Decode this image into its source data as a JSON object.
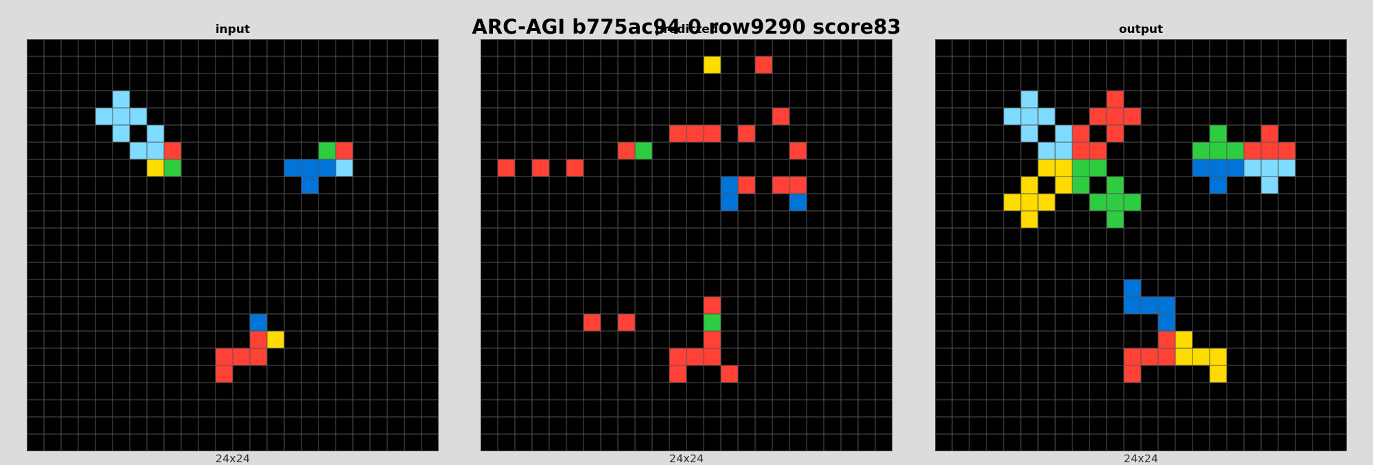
{
  "title": "ARC-AGI b775ac94 0 row9290 score83",
  "palette": {
    "0": "#000000",
    "1": "#0074D9",
    "2": "#FF4136",
    "3": "#2ECC40",
    "4": "#FFDC00",
    "8": "#7FDBFF"
  },
  "grid_line_color": "#555555",
  "panels": [
    {
      "key": "input",
      "title": "input",
      "size_label": "24x24",
      "rows": 24,
      "cols": 24,
      "cells": [
        [
          3,
          5,
          8
        ],
        [
          4,
          4,
          8
        ],
        [
          4,
          5,
          8
        ],
        [
          4,
          6,
          8
        ],
        [
          5,
          5,
          8
        ],
        [
          5,
          7,
          8
        ],
        [
          6,
          6,
          8
        ],
        [
          6,
          7,
          8
        ],
        [
          6,
          8,
          2
        ],
        [
          6,
          17,
          3
        ],
        [
          6,
          18,
          2
        ],
        [
          7,
          7,
          4
        ],
        [
          7,
          8,
          3
        ],
        [
          7,
          15,
          1
        ],
        [
          7,
          16,
          1
        ],
        [
          7,
          17,
          1
        ],
        [
          7,
          18,
          8
        ],
        [
          8,
          16,
          1
        ],
        [
          16,
          13,
          1
        ],
        [
          17,
          13,
          2
        ],
        [
          17,
          14,
          4
        ],
        [
          18,
          11,
          2
        ],
        [
          18,
          12,
          2
        ],
        [
          18,
          13,
          2
        ],
        [
          19,
          11,
          2
        ]
      ]
    },
    {
      "key": "predicted",
      "title": "predicted",
      "size_label": "24x24",
      "rows": 24,
      "cols": 24,
      "cells": [
        [
          1,
          13,
          4
        ],
        [
          1,
          16,
          2
        ],
        [
          4,
          17,
          2
        ],
        [
          5,
          11,
          2
        ],
        [
          5,
          12,
          2
        ],
        [
          5,
          13,
          2
        ],
        [
          5,
          15,
          2
        ],
        [
          6,
          8,
          2
        ],
        [
          6,
          9,
          3
        ],
        [
          6,
          18,
          2
        ],
        [
          7,
          1,
          2
        ],
        [
          7,
          3,
          2
        ],
        [
          7,
          5,
          2
        ],
        [
          8,
          14,
          1
        ],
        [
          8,
          15,
          2
        ],
        [
          8,
          17,
          2
        ],
        [
          8,
          18,
          2
        ],
        [
          9,
          14,
          1
        ],
        [
          9,
          18,
          1
        ],
        [
          15,
          13,
          2
        ],
        [
          16,
          6,
          2
        ],
        [
          16,
          8,
          2
        ],
        [
          16,
          13,
          3
        ],
        [
          17,
          13,
          2
        ],
        [
          18,
          11,
          2
        ],
        [
          18,
          12,
          2
        ],
        [
          18,
          13,
          2
        ],
        [
          19,
          11,
          2
        ],
        [
          19,
          14,
          2
        ]
      ]
    },
    {
      "key": "output",
      "title": "output",
      "size_label": "24x24",
      "rows": 24,
      "cols": 24,
      "cells": [
        [
          3,
          5,
          8
        ],
        [
          3,
          10,
          2
        ],
        [
          4,
          4,
          8
        ],
        [
          4,
          5,
          8
        ],
        [
          4,
          6,
          8
        ],
        [
          4,
          9,
          2
        ],
        [
          4,
          10,
          2
        ],
        [
          4,
          11,
          2
        ],
        [
          5,
          5,
          8
        ],
        [
          5,
          7,
          8
        ],
        [
          5,
          8,
          2
        ],
        [
          5,
          10,
          2
        ],
        [
          5,
          16,
          3
        ],
        [
          5,
          19,
          2
        ],
        [
          6,
          6,
          8
        ],
        [
          6,
          7,
          8
        ],
        [
          6,
          8,
          2
        ],
        [
          6,
          9,
          2
        ],
        [
          6,
          15,
          3
        ],
        [
          6,
          16,
          3
        ],
        [
          6,
          17,
          3
        ],
        [
          6,
          18,
          2
        ],
        [
          6,
          19,
          2
        ],
        [
          6,
          20,
          2
        ],
        [
          7,
          6,
          4
        ],
        [
          7,
          7,
          4
        ],
        [
          7,
          8,
          3
        ],
        [
          7,
          9,
          3
        ],
        [
          7,
          15,
          1
        ],
        [
          7,
          16,
          1
        ],
        [
          7,
          17,
          1
        ],
        [
          7,
          18,
          8
        ],
        [
          7,
          19,
          8
        ],
        [
          7,
          20,
          8
        ],
        [
          8,
          5,
          4
        ],
        [
          8,
          7,
          4
        ],
        [
          8,
          8,
          3
        ],
        [
          8,
          10,
          3
        ],
        [
          8,
          16,
          1
        ],
        [
          8,
          19,
          8
        ],
        [
          9,
          4,
          4
        ],
        [
          9,
          5,
          4
        ],
        [
          9,
          6,
          4
        ],
        [
          9,
          9,
          3
        ],
        [
          9,
          10,
          3
        ],
        [
          9,
          11,
          3
        ],
        [
          10,
          5,
          4
        ],
        [
          10,
          10,
          3
        ],
        [
          14,
          11,
          1
        ],
        [
          15,
          11,
          1
        ],
        [
          15,
          12,
          1
        ],
        [
          15,
          13,
          1
        ],
        [
          16,
          13,
          1
        ],
        [
          17,
          13,
          2
        ],
        [
          17,
          14,
          4
        ],
        [
          18,
          11,
          2
        ],
        [
          18,
          12,
          2
        ],
        [
          18,
          13,
          2
        ],
        [
          18,
          14,
          4
        ],
        [
          18,
          15,
          4
        ],
        [
          18,
          16,
          4
        ],
        [
          19,
          11,
          2
        ],
        [
          19,
          16,
          4
        ]
      ]
    }
  ]
}
